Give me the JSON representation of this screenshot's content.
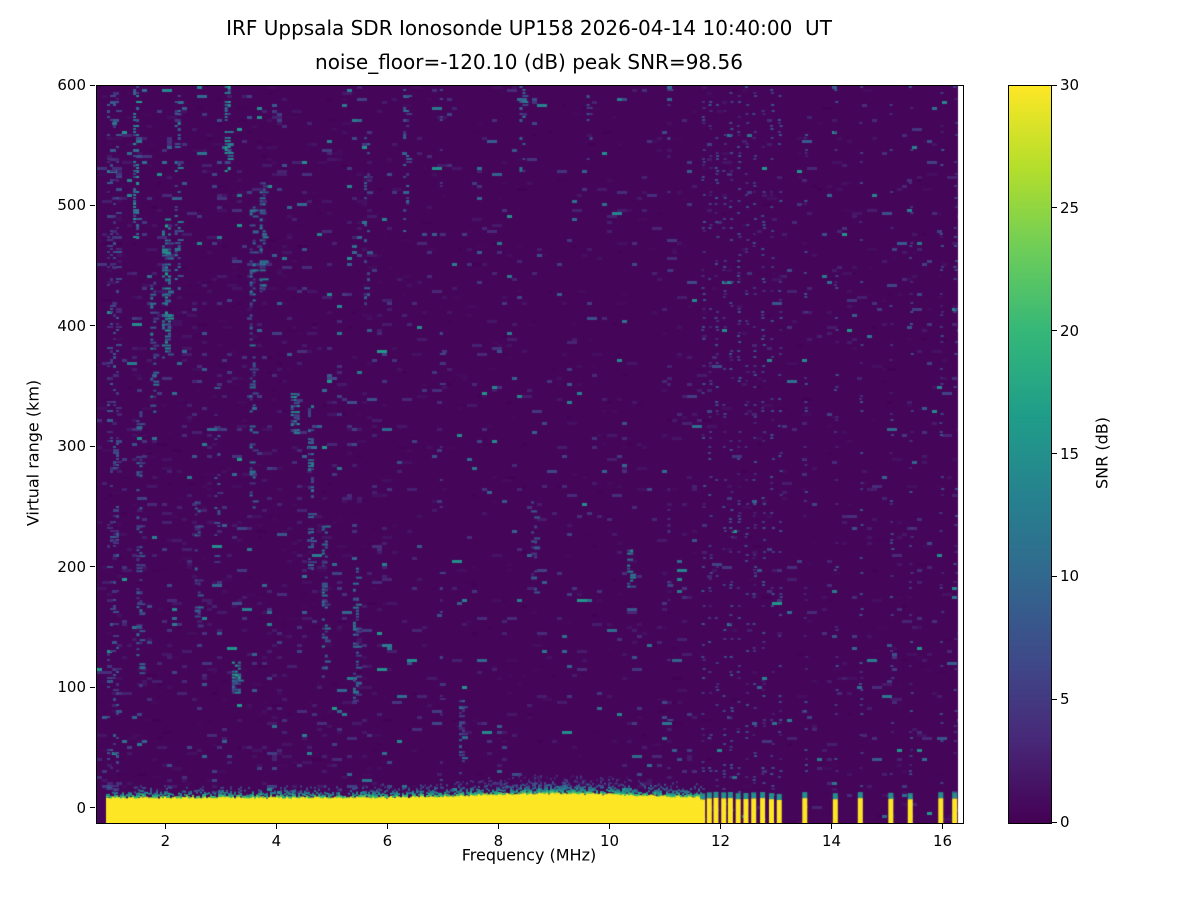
{
  "chart_data": {
    "type": "heatmap",
    "title": "IRF Uppsala SDR Ionosonde UP158 2026-04-14 10:40:00  UT",
    "subtitle": "noise_floor=-120.10 (dB) peak SNR=98.56",
    "xlabel": "Frequency (MHz)",
    "ylabel": "Virtual range (km)",
    "xlim": [
      0.75,
      16.35
    ],
    "ylim": [
      -12,
      600
    ],
    "xticks": [
      2,
      4,
      6,
      8,
      10,
      12,
      14,
      16
    ],
    "yticks": [
      0,
      100,
      200,
      300,
      400,
      500,
      600
    ],
    "grid": false,
    "colorbar": {
      "label": "SNR (dB)",
      "min": 0,
      "max": 30,
      "ticks": [
        0,
        5,
        10,
        15,
        20,
        25,
        30
      ],
      "colormap": "viridis"
    },
    "features": {
      "background_snr_db": 0.5,
      "data_freq_range_mhz": [
        0.75,
        16.26
      ],
      "ground_pulse": {
        "freq_start": 0.92,
        "freq_end": 11.62,
        "range_km": [
          -12,
          8
        ],
        "snr_db": 30,
        "fringe_km": 10
      },
      "enhanced_fringe": {
        "freq_center": 9.0,
        "extra_km": 7
      },
      "stepped_frequencies_mhz": [
        11.66,
        11.78,
        11.9,
        12.04,
        12.16,
        12.3,
        12.44,
        12.58,
        12.74,
        12.9,
        13.04,
        13.5,
        14.05,
        14.5,
        15.05,
        15.4,
        15.95,
        16.2
      ],
      "stepped_pulse": {
        "range_km": [
          -12,
          7
        ],
        "snr_db": 30
      },
      "noise_streaks": [
        {
          "f": 1.02,
          "w": 0.18,
          "y0": 0,
          "y1": 600,
          "density": 0.2,
          "snr": 8
        },
        {
          "f": 1.45,
          "w": 0.1,
          "y0": 470,
          "y1": 600,
          "density": 0.5,
          "snr": 15
        },
        {
          "f": 1.5,
          "w": 0.08,
          "y0": 100,
          "y1": 330,
          "density": 0.28,
          "snr": 10
        },
        {
          "f": 1.75,
          "w": 0.08,
          "y0": 330,
          "y1": 440,
          "density": 0.35,
          "snr": 12
        },
        {
          "f": 2.0,
          "w": 0.16,
          "y0": 375,
          "y1": 490,
          "density": 0.5,
          "snr": 16
        },
        {
          "f": 2.2,
          "w": 0.1,
          "y0": 430,
          "y1": 600,
          "density": 0.33,
          "snr": 12
        },
        {
          "f": 2.55,
          "w": 0.08,
          "y0": 150,
          "y1": 260,
          "density": 0.28,
          "snr": 10
        },
        {
          "f": 2.9,
          "w": 0.07,
          "y0": 200,
          "y1": 360,
          "density": 0.22,
          "snr": 9
        },
        {
          "f": 3.1,
          "w": 0.1,
          "y0": 530,
          "y1": 600,
          "density": 0.55,
          "snr": 16
        },
        {
          "f": 3.25,
          "w": 0.14,
          "y0": 95,
          "y1": 122,
          "density": 0.75,
          "snr": 16
        },
        {
          "f": 3.55,
          "w": 0.1,
          "y0": 250,
          "y1": 500,
          "density": 0.33,
          "snr": 12
        },
        {
          "f": 3.72,
          "w": 0.08,
          "y0": 430,
          "y1": 520,
          "density": 0.38,
          "snr": 13
        },
        {
          "f": 4.3,
          "w": 0.12,
          "y0": 312,
          "y1": 345,
          "density": 0.75,
          "snr": 15
        },
        {
          "f": 4.6,
          "w": 0.1,
          "y0": 200,
          "y1": 335,
          "density": 0.38,
          "snr": 12
        },
        {
          "f": 4.85,
          "w": 0.1,
          "y0": 108,
          "y1": 235,
          "density": 0.42,
          "snr": 13
        },
        {
          "f": 5.4,
          "w": 0.08,
          "y0": 88,
          "y1": 200,
          "density": 0.33,
          "snr": 11
        },
        {
          "f": 5.6,
          "w": 0.08,
          "y0": 420,
          "y1": 560,
          "density": 0.26,
          "snr": 10
        },
        {
          "f": 6.3,
          "w": 0.07,
          "y0": 480,
          "y1": 600,
          "density": 0.26,
          "snr": 10
        },
        {
          "f": 6.95,
          "w": 0.05,
          "y0": 0,
          "y1": 600,
          "density": 0.1,
          "snr": 7
        },
        {
          "f": 7.3,
          "w": 0.06,
          "y0": 5,
          "y1": 95,
          "density": 0.28,
          "snr": 10
        },
        {
          "f": 8.4,
          "w": 0.08,
          "y0": 530,
          "y1": 600,
          "density": 0.36,
          "snr": 12
        },
        {
          "f": 8.6,
          "w": 0.06,
          "y0": 175,
          "y1": 260,
          "density": 0.22,
          "snr": 9
        },
        {
          "f": 9.6,
          "w": 0.06,
          "y0": 530,
          "y1": 600,
          "density": 0.2,
          "snr": 8
        },
        {
          "f": 10.35,
          "w": 0.1,
          "y0": 183,
          "y1": 215,
          "density": 0.65,
          "snr": 14
        },
        {
          "f": 11.05,
          "w": 0.05,
          "y0": 0,
          "y1": 600,
          "density": 0.1,
          "snr": 6
        }
      ]
    }
  }
}
